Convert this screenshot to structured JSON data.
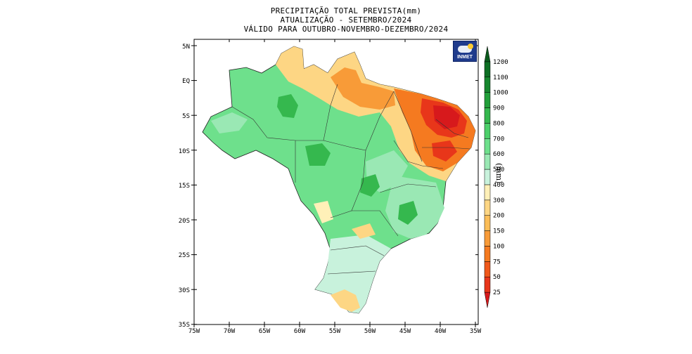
{
  "header": {
    "line1": "PRECIPITAÇÃO TOTAL PREVISTA(mm)",
    "line2": "ATUALIZAÇÃO - SETEMBRO/2024",
    "line3": "VÁLIDO PARA OUTUBRO-NOVEMBRO-DEZEMBRO/2024"
  },
  "logo": {
    "text": "INMET",
    "icon": "cloud-sun-icon"
  },
  "axes": {
    "lat_labels": [
      "5N",
      "EQ",
      "5S",
      "10S",
      "15S",
      "20S",
      "25S",
      "30S",
      "35S"
    ],
    "lon_labels": [
      "75W",
      "70W",
      "65W",
      "60W",
      "55W",
      "50W",
      "45W",
      "40W",
      "35W"
    ]
  },
  "colorbar": {
    "unit": "(mm)",
    "levels": [
      "25",
      "50",
      "75",
      "100",
      "150",
      "200",
      "300",
      "400",
      "500",
      "600",
      "700",
      "800",
      "900",
      "1000",
      "1100",
      "1200"
    ],
    "colors": [
      "#d7191c",
      "#e8361a",
      "#f0581a",
      "#f57a20",
      "#f89b38",
      "#fbbd57",
      "#fdd684",
      "#fff0b8",
      "#c8f2dc",
      "#9ae8b4",
      "#6ee08c",
      "#4ccf6a",
      "#35b84e",
      "#229f3a",
      "#16872e",
      "#0d6f24",
      "#0a5a1c"
    ]
  },
  "map": {
    "frame_color": "#000000",
    "dominant_colors": {
      "north_and_center": "#6ee08c",
      "northeast_coast": "#e8361a",
      "south": "#c8f2dc",
      "transition": "#fdd684"
    }
  }
}
